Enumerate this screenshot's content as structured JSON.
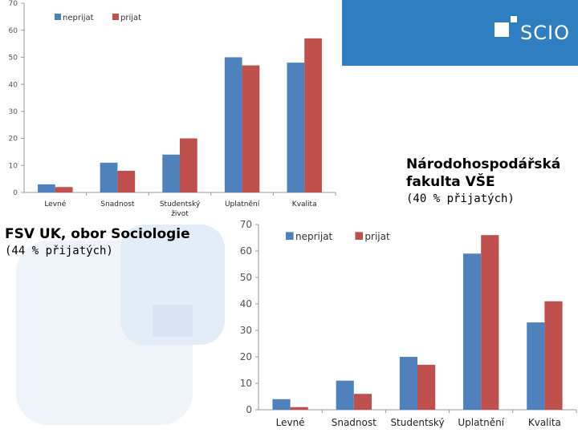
{
  "branding": {
    "logo_text": "SCIO",
    "logo_bg": "#2f7ec0"
  },
  "captions": {
    "vse_title": "Národohospodářská fakulta VŠE",
    "vse_subtitle": "(40 % přijatých)",
    "fsv_title": "FSV UK, obor Sociologie",
    "fsv_subtitle": "(44 % přijatých)"
  },
  "colors": {
    "neprijat": "#4f81bd",
    "prijat": "#c0504d"
  },
  "chart_data": [
    {
      "type": "bar",
      "categories": [
        "Levné",
        "Snadnost",
        "Studentský život",
        "Uplatnění",
        "Kvalita"
      ],
      "series": [
        {
          "name": "neprijat",
          "values": [
            3,
            11,
            14,
            50,
            48
          ]
        },
        {
          "name": "prijat",
          "values": [
            2,
            8,
            20,
            47,
            57
          ]
        }
      ],
      "ylim": [
        0,
        70
      ],
      "yticks": [
        0,
        10,
        20,
        30,
        40,
        50,
        60,
        70
      ],
      "legend": "top-left",
      "grid": false
    },
    {
      "type": "bar",
      "categories": [
        "Levné",
        "Snadnost",
        "Studentský",
        "Uplatnění",
        "Kvalita"
      ],
      "series": [
        {
          "name": "neprijat",
          "values": [
            4,
            11,
            20,
            59,
            33
          ]
        },
        {
          "name": "prijat",
          "values": [
            1,
            6,
            17,
            66,
            41
          ]
        }
      ],
      "ylim": [
        0,
        70
      ],
      "yticks": [
        0,
        10,
        20,
        30,
        40,
        50,
        60,
        70
      ],
      "legend": "top-left",
      "grid": false
    }
  ]
}
